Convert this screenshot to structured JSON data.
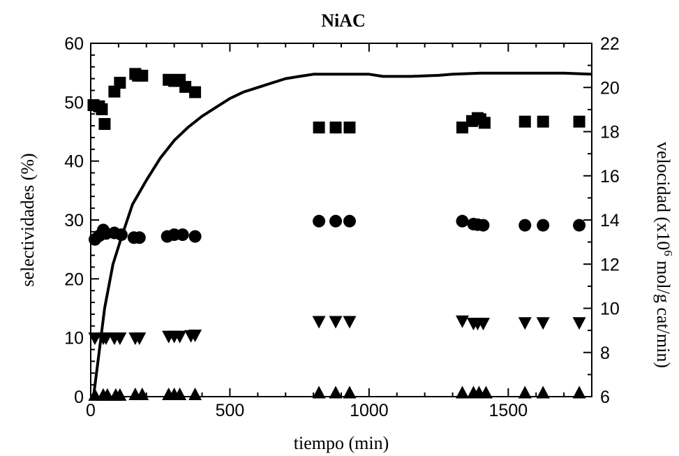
{
  "chart_data": {
    "type": "scatter",
    "title": "NiAC",
    "xlabel": "tiempo (min)",
    "ylabel": "selectividades (%)",
    "ylabel_right_prefix": "velocidad (x10",
    "ylabel_right_sup": "6",
    "ylabel_right_suffix": " mol/g cat/min)",
    "xlim": [
      0,
      1800
    ],
    "ylim": [
      0,
      60
    ],
    "ylim_right": [
      6,
      22
    ],
    "x_ticks": [
      0,
      500,
      1000,
      1500
    ],
    "y_ticks": [
      0,
      10,
      20,
      30,
      40,
      50,
      60
    ],
    "y_right_ticks": [
      6,
      8,
      10,
      12,
      14,
      16,
      18,
      20,
      22
    ],
    "grid": false,
    "series": [
      {
        "marker": "square",
        "axis": "left",
        "points": [
          [
            10,
            49.5
          ],
          [
            30,
            49.3
          ],
          [
            40,
            48.8
          ],
          [
            50,
            46.3
          ],
          [
            85,
            51.8
          ],
          [
            105,
            53.3
          ],
          [
            160,
            54.8
          ],
          [
            170,
            54.5
          ],
          [
            185,
            54.5
          ],
          [
            280,
            53.8
          ],
          [
            300,
            53.6
          ],
          [
            320,
            53.8
          ],
          [
            340,
            52.6
          ],
          [
            375,
            51.7
          ],
          [
            820,
            45.7
          ],
          [
            880,
            45.7
          ],
          [
            930,
            45.7
          ],
          [
            1335,
            45.7
          ],
          [
            1370,
            46.8
          ],
          [
            1390,
            47.3
          ],
          [
            1400,
            47.1
          ],
          [
            1415,
            46.5
          ],
          [
            1560,
            46.7
          ],
          [
            1625,
            46.7
          ],
          [
            1755,
            46.7
          ]
        ]
      },
      {
        "marker": "circle",
        "axis": "left",
        "points": [
          [
            15,
            26.7
          ],
          [
            30,
            27.3
          ],
          [
            45,
            28.3
          ],
          [
            55,
            27.7
          ],
          [
            85,
            27.8
          ],
          [
            110,
            27.5
          ],
          [
            155,
            27.0
          ],
          [
            175,
            27.0
          ],
          [
            275,
            27.2
          ],
          [
            300,
            27.5
          ],
          [
            330,
            27.5
          ],
          [
            375,
            27.2
          ],
          [
            820,
            29.8
          ],
          [
            880,
            29.8
          ],
          [
            930,
            29.8
          ],
          [
            1335,
            29.8
          ],
          [
            1375,
            29.3
          ],
          [
            1390,
            29.2
          ],
          [
            1410,
            29.1
          ],
          [
            1560,
            29.1
          ],
          [
            1625,
            29.1
          ],
          [
            1755,
            29.1
          ]
        ]
      },
      {
        "marker": "triangle-down",
        "axis": "left",
        "points": [
          [
            15,
            10.0
          ],
          [
            45,
            10.0
          ],
          [
            55,
            10.0
          ],
          [
            85,
            10.0
          ],
          [
            105,
            10.0
          ],
          [
            160,
            10.0
          ],
          [
            175,
            10.0
          ],
          [
            280,
            10.3
          ],
          [
            300,
            10.3
          ],
          [
            320,
            10.3
          ],
          [
            360,
            10.4
          ],
          [
            375,
            10.5
          ],
          [
            820,
            12.8
          ],
          [
            880,
            12.8
          ],
          [
            930,
            12.8
          ],
          [
            1335,
            12.9
          ],
          [
            1375,
            12.5
          ],
          [
            1390,
            12.5
          ],
          [
            1410,
            12.5
          ],
          [
            1560,
            12.6
          ],
          [
            1625,
            12.6
          ],
          [
            1755,
            12.6
          ]
        ]
      },
      {
        "marker": "triangle-up",
        "axis": "left",
        "points": [
          [
            15,
            0.2
          ],
          [
            45,
            0.2
          ],
          [
            60,
            0.2
          ],
          [
            90,
            0.2
          ],
          [
            105,
            0.2
          ],
          [
            160,
            0.3
          ],
          [
            185,
            0.3
          ],
          [
            280,
            0.3
          ],
          [
            300,
            0.3
          ],
          [
            320,
            0.3
          ],
          [
            375,
            0.3
          ],
          [
            820,
            0.6
          ],
          [
            880,
            0.6
          ],
          [
            930,
            0.6
          ],
          [
            1335,
            0.6
          ],
          [
            1375,
            0.6
          ],
          [
            1395,
            0.6
          ],
          [
            1420,
            0.6
          ],
          [
            1560,
            0.6
          ],
          [
            1625,
            0.6
          ],
          [
            1755,
            0.6
          ]
        ]
      },
      {
        "marker": "line",
        "axis": "right",
        "points": [
          [
            10,
            6.0
          ],
          [
            30,
            8.0
          ],
          [
            50,
            10.0
          ],
          [
            80,
            12.0
          ],
          [
            110,
            13.2
          ],
          [
            150,
            14.7
          ],
          [
            200,
            15.8
          ],
          [
            250,
            16.8
          ],
          [
            300,
            17.6
          ],
          [
            350,
            18.2
          ],
          [
            400,
            18.7
          ],
          [
            450,
            19.1
          ],
          [
            500,
            19.5
          ],
          [
            550,
            19.8
          ],
          [
            600,
            20.0
          ],
          [
            650,
            20.2
          ],
          [
            700,
            20.4
          ],
          [
            750,
            20.5
          ],
          [
            800,
            20.6
          ],
          [
            900,
            20.6
          ],
          [
            1000,
            20.6
          ],
          [
            1050,
            20.5
          ],
          [
            1150,
            20.5
          ],
          [
            1250,
            20.55
          ],
          [
            1300,
            20.6
          ],
          [
            1400,
            20.65
          ],
          [
            1500,
            20.65
          ],
          [
            1600,
            20.65
          ],
          [
            1700,
            20.65
          ],
          [
            1800,
            20.6
          ]
        ]
      }
    ]
  }
}
